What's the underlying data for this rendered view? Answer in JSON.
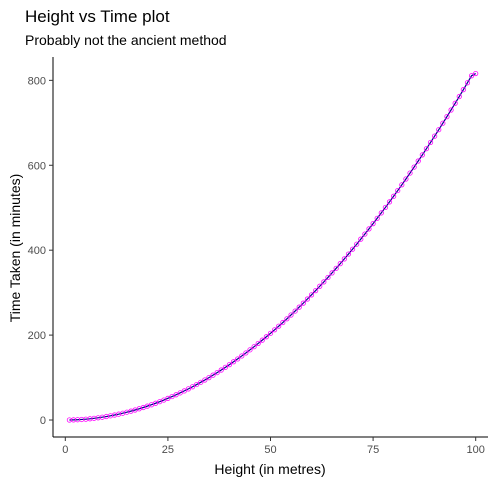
{
  "chart_data": {
    "type": "line",
    "title": "Height vs Time plot",
    "subtitle": "Probably not the ancient method",
    "xlabel": "Height (in metres)",
    "ylabel": "Time Taken (in minutes)",
    "xlim": [
      -3,
      103
    ],
    "ylim": [
      -40,
      855
    ],
    "x_ticks": [
      0,
      25,
      50,
      75,
      100
    ],
    "y_ticks": [
      0,
      200,
      400,
      600,
      800
    ],
    "grid": false,
    "legend": "none",
    "series": [
      {
        "marker": "open-circle",
        "marker_color": "#ff00ff",
        "line_color": "#00008b",
        "x": [
          1,
          2,
          3,
          4,
          5,
          6,
          7,
          8,
          9,
          10,
          11,
          12,
          13,
          14,
          15,
          16,
          17,
          18,
          19,
          20,
          21,
          22,
          23,
          24,
          25,
          26,
          27,
          28,
          29,
          30,
          31,
          32,
          33,
          34,
          35,
          36,
          37,
          38,
          39,
          40,
          41,
          42,
          43,
          44,
          45,
          46,
          47,
          48,
          49,
          50,
          51,
          52,
          53,
          54,
          55,
          56,
          57,
          58,
          59,
          60,
          61,
          62,
          63,
          64,
          65,
          66,
          67,
          68,
          69,
          70,
          71,
          72,
          73,
          74,
          75,
          76,
          77,
          78,
          79,
          80,
          81,
          82,
          83,
          84,
          85,
          86,
          87,
          88,
          89,
          90,
          91,
          92,
          93,
          94,
          95,
          96,
          97,
          98,
          99,
          100
        ],
        "values": [
          0.1,
          0.3,
          0.7,
          1.3,
          2.0,
          2.9,
          4.0,
          5.2,
          6.6,
          8.2,
          9.9,
          11.8,
          13.8,
          16.0,
          18.4,
          20.9,
          23.6,
          26.5,
          29.5,
          32.7,
          36.0,
          39.5,
          43.2,
          47.0,
          51.0,
          55.2,
          59.5,
          64.0,
          68.6,
          73.4,
          78.4,
          83.5,
          88.8,
          94.3,
          99.9,
          105.7,
          111.7,
          117.8,
          124.1,
          130.5,
          137.2,
          143.9,
          150.9,
          158.0,
          165.3,
          172.7,
          180.4,
          188.1,
          196.1,
          204.2,
          212.5,
          221.0,
          229.6,
          238.4,
          247.4,
          256.6,
          265.9,
          275.3,
          285.0,
          294.8,
          304.8,
          315.0,
          325.3,
          335.8,
          346.5,
          357.3,
          368.3,
          379.5,
          390.9,
          402.4,
          414.1,
          426.0,
          438.0,
          450.2,
          462.6,
          475.1,
          487.8,
          500.7,
          513.8,
          527.0,
          540.4,
          554.0,
          567.7,
          581.6,
          595.7,
          610.0,
          624.4,
          639.0,
          653.8,
          668.7,
          683.8,
          699.1,
          714.6,
          730.2,
          746.0,
          761.9,
          778.1,
          794.4,
          810.9,
          816.0
        ]
      }
    ]
  }
}
